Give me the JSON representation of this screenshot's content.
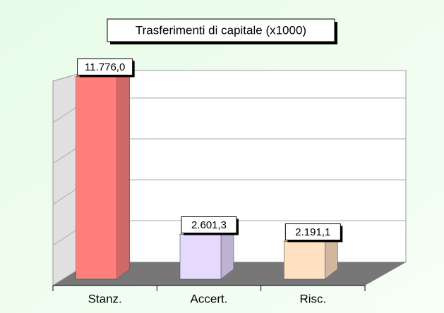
{
  "chart_data": {
    "type": "bar3d",
    "title": "Trasferimenti di capitale (x1000)",
    "categories": [
      "Stanz.",
      "Accert.",
      "Risc."
    ],
    "values": [
      11776.0,
      2601.3,
      2191.1
    ],
    "value_labels": [
      "11.776,0",
      "2.601,3",
      "2.191,1"
    ],
    "colors": [
      "#ff7f7f",
      "#e6d9ff",
      "#ffe0c0"
    ],
    "ylim": [
      0,
      12000
    ]
  }
}
